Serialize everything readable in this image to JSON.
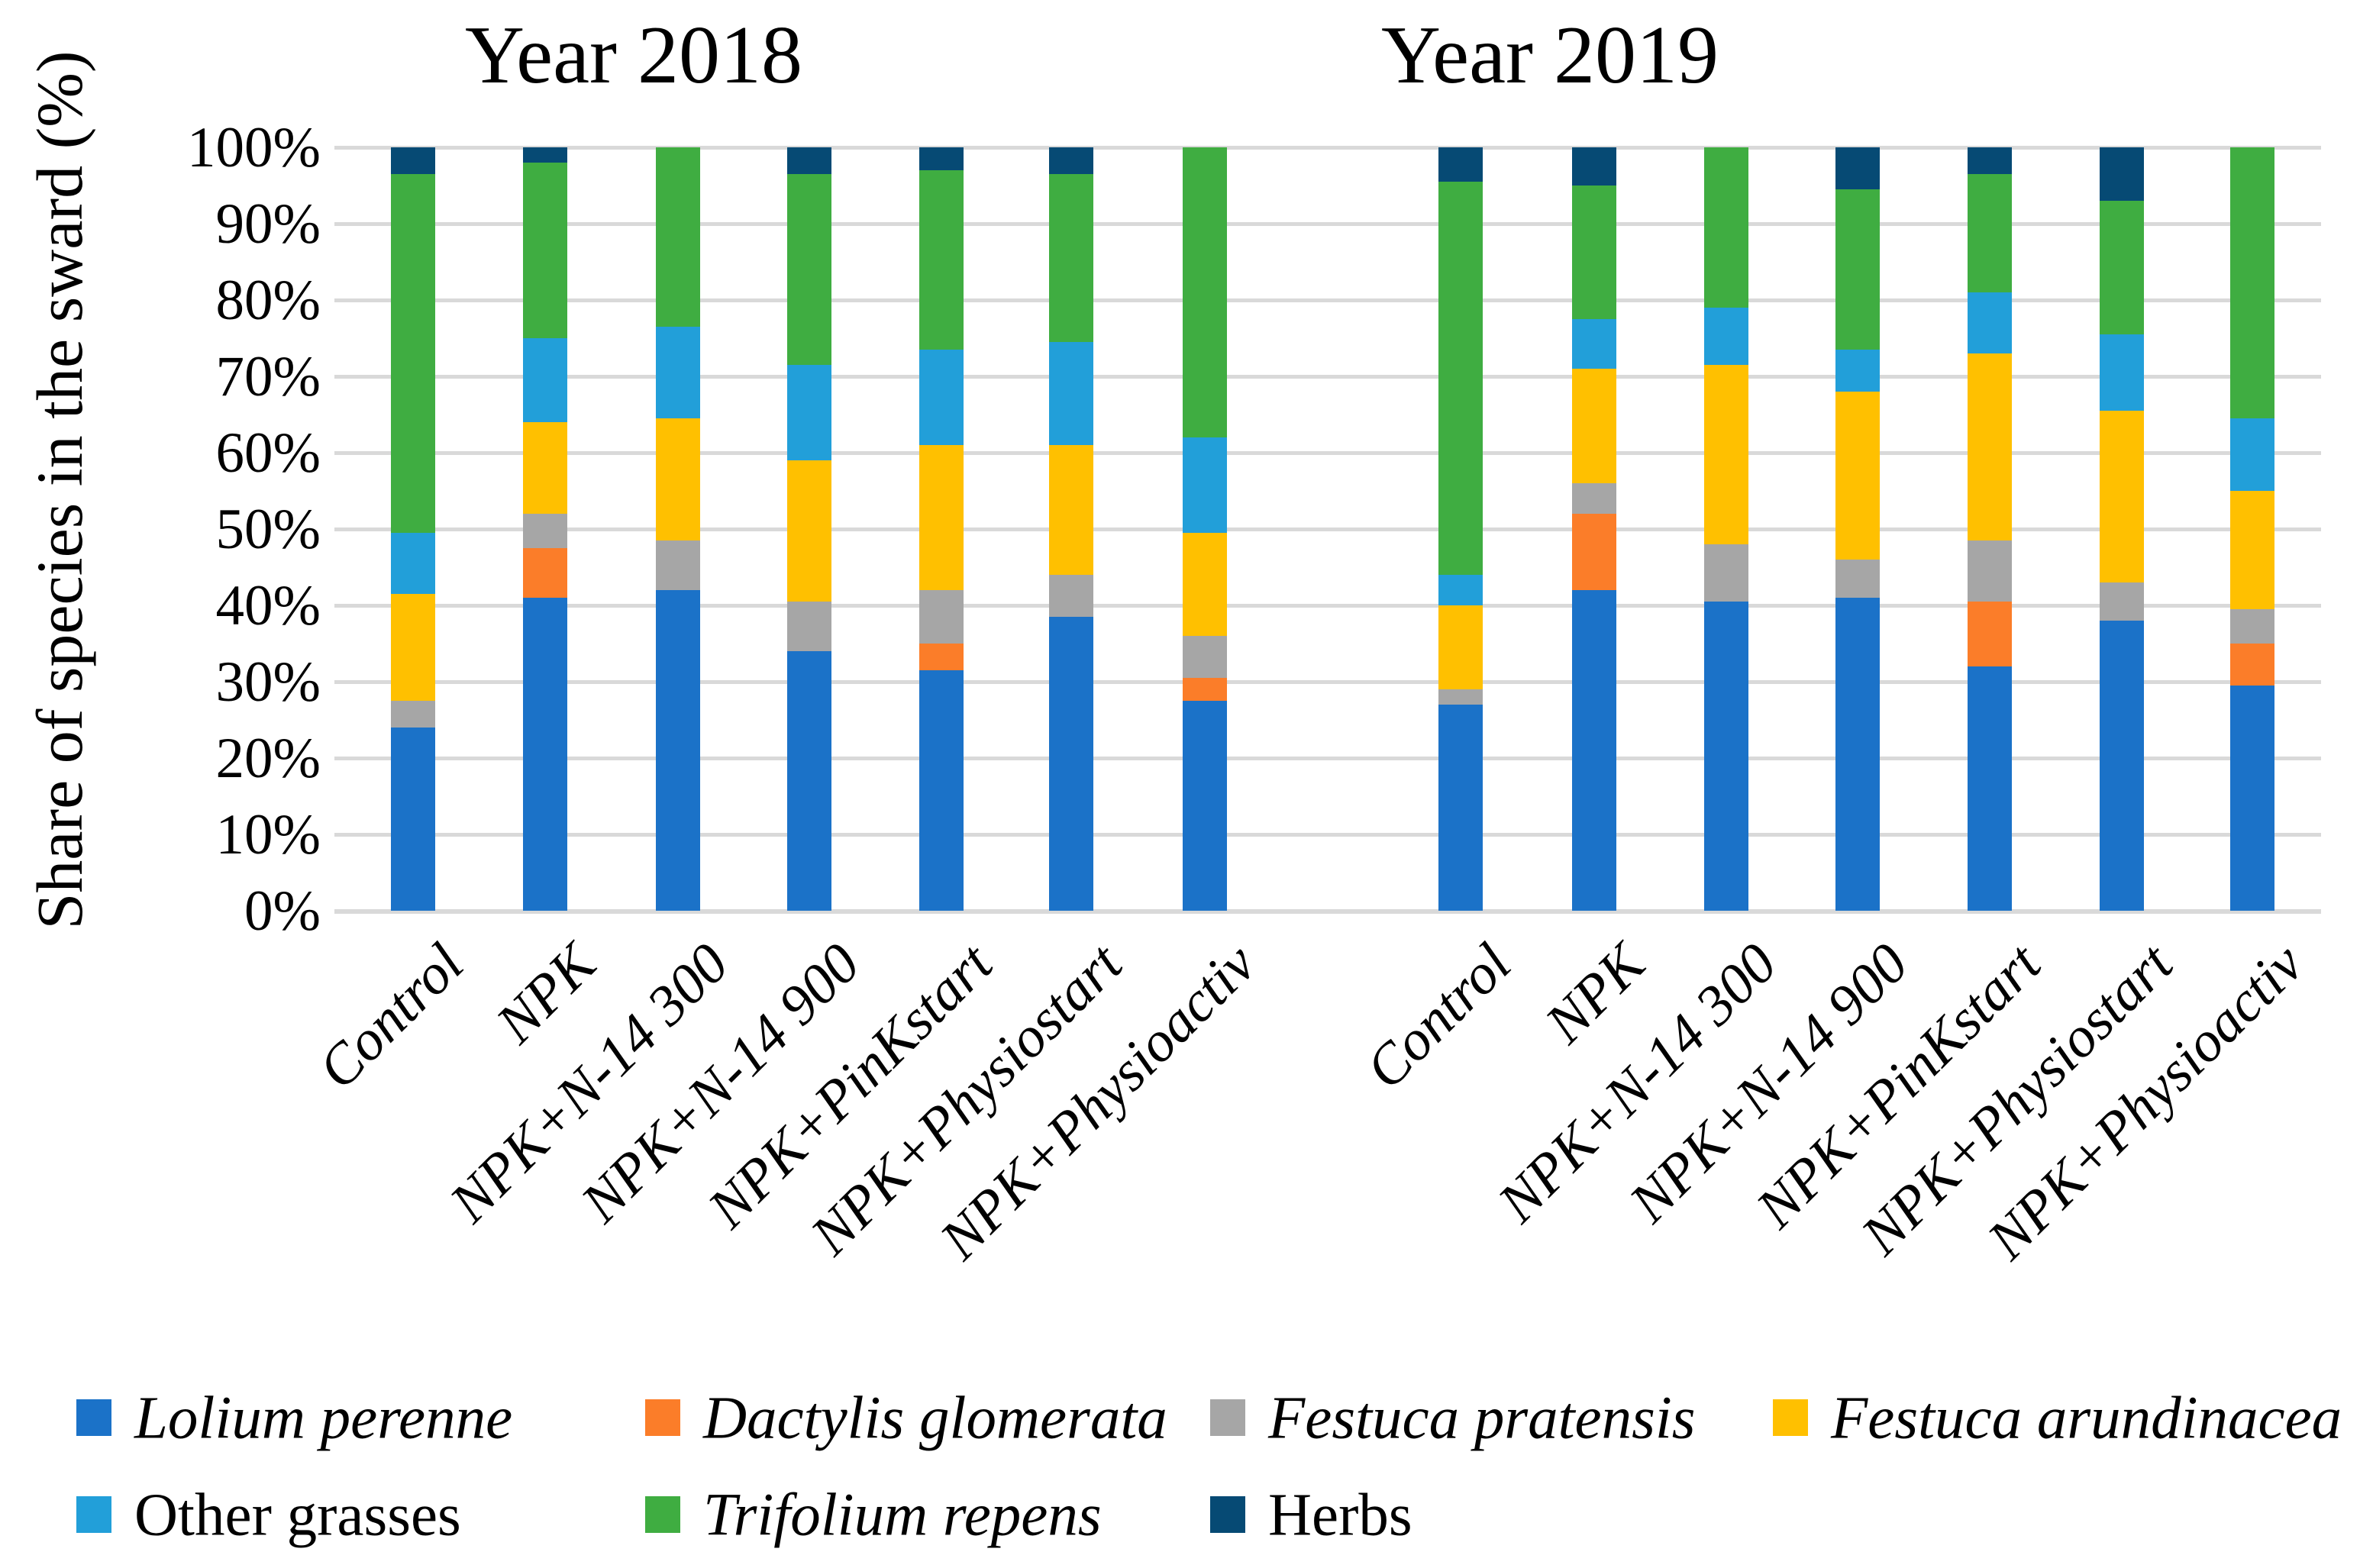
{
  "chart_data": {
    "type": "bar",
    "variant": "100%-stacked-columns",
    "titles": [
      "Year 2018",
      "Year 2019"
    ],
    "ylabel": "Share of species in the sward (%)",
    "ylim": [
      0,
      100
    ],
    "grid": true,
    "grid_color": "#D9D9D9",
    "legend_position": "bottom",
    "ytick_labels": [
      "100%",
      "90%",
      "80%",
      "70%",
      "60%",
      "50%",
      "40%",
      "30%",
      "20%",
      "10%",
      "0%"
    ],
    "categories": [
      "Control",
      "NPK",
      "NPK+N-14 300",
      "NPK+N-14 900",
      "NPK+PinKstart",
      "NPK+Physiostart",
      "NPK+Physioactiv"
    ],
    "series": [
      {
        "name": "Lolium perenne",
        "italic": true,
        "color": "#1B72C8",
        "y2018": [
          24,
          41,
          42,
          34,
          31.5,
          38.5,
          27.5
        ],
        "y2019": [
          27,
          42,
          40.5,
          41,
          32,
          38,
          29.5
        ]
      },
      {
        "name": "Dactylis glomerata",
        "italic": true,
        "color": "#FB7D29",
        "y2018": [
          0,
          6.5,
          0,
          0,
          3.5,
          0,
          3
        ],
        "y2019": [
          0,
          10,
          0,
          0,
          8.5,
          0,
          5.5
        ]
      },
      {
        "name": "Festuca pratensis",
        "italic": true,
        "color": "#A6A6A6",
        "y2018": [
          3.5,
          4.5,
          6.5,
          6.5,
          7,
          5.5,
          5.5
        ],
        "y2019": [
          2,
          4,
          7.5,
          5,
          8,
          5,
          4.5
        ]
      },
      {
        "name": "Festuca arundinacea",
        "italic": true,
        "color": "#FFC000",
        "y2018": [
          14,
          12,
          16,
          18.5,
          19,
          17,
          13.5
        ],
        "y2019": [
          11,
          15,
          23.5,
          22,
          24.5,
          22.5,
          15.5
        ]
      },
      {
        "name": "Other grasses",
        "italic": false,
        "color": "#229FD9",
        "y2018": [
          8,
          11,
          12,
          12.5,
          12.5,
          13.5,
          12.5
        ],
        "y2019": [
          4,
          6.5,
          7.5,
          5.5,
          8,
          10,
          9.5
        ]
      },
      {
        "name": "Trifolium repens",
        "italic": true,
        "color": "#3FAD41",
        "y2018": [
          47,
          23,
          23.5,
          25,
          23.5,
          22,
          38
        ],
        "y2019": [
          51.5,
          17.5,
          21,
          21,
          15.5,
          17.5,
          35.5
        ]
      },
      {
        "name": "Herbs",
        "italic": false,
        "color": "#064A74",
        "y2018": [
          3.5,
          2,
          0,
          3.5,
          3,
          3.5,
          0
        ],
        "y2019": [
          4.5,
          5,
          0,
          5.5,
          3.5,
          7,
          0
        ]
      }
    ],
    "legend_rows": [
      [
        0,
        1,
        2,
        3
      ],
      [
        4,
        5,
        6
      ]
    ]
  }
}
